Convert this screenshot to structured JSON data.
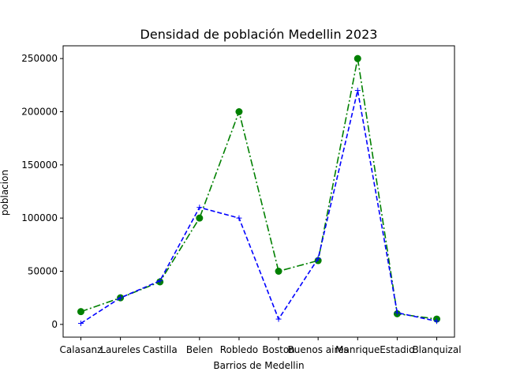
{
  "chart_data": {
    "type": "line",
    "title": "Densidad de población Medellin 2023",
    "xlabel": "Barrios de Medellin",
    "ylabel": "poblacion",
    "categories": [
      "Calasanz",
      "Laureles",
      "Castilla",
      "Belen",
      "Robledo",
      "Boston",
      "Buenos aires",
      "Manrique",
      "Estadio",
      "Blanquizal"
    ],
    "ylim": [
      -12000,
      262000
    ],
    "yticks": [
      0,
      50000,
      100000,
      150000,
      200000,
      250000
    ],
    "ytick_labels": [
      "0",
      "50000",
      "100000",
      "150000",
      "200000",
      "250000"
    ],
    "grid": false,
    "series": [
      {
        "name": "green",
        "color": "#008000",
        "linestyle": "dashdot",
        "marker": "circle",
        "values": [
          12000,
          25000,
          40000,
          100000,
          200000,
          50000,
          60000,
          250000,
          10000,
          5000
        ]
      },
      {
        "name": "blue",
        "color": "#0000ff",
        "linestyle": "dashed",
        "marker": "plus",
        "values": [
          1000,
          25000,
          41000,
          110000,
          100000,
          5000,
          62000,
          220000,
          11000,
          3000
        ]
      }
    ]
  }
}
